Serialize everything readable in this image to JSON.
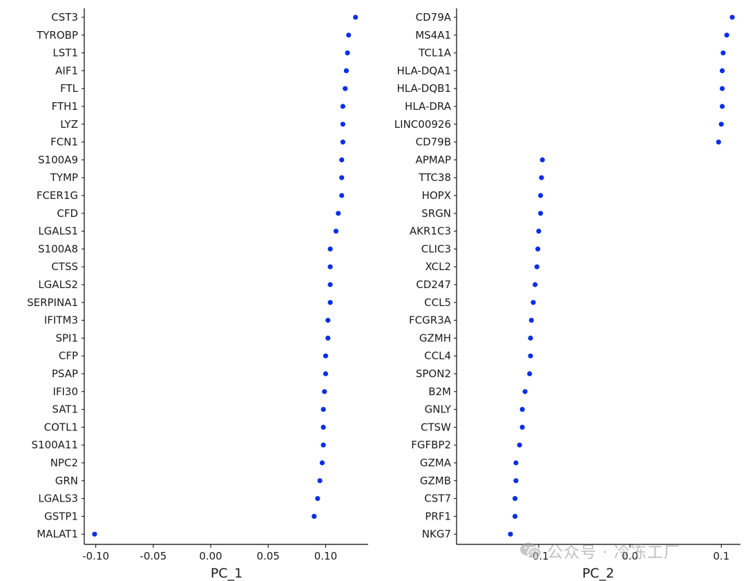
{
  "chart_data": [
    {
      "type": "scatter",
      "xlabel": "PC_1",
      "xlim": [
        -0.11,
        0.137
      ],
      "xticks": [
        -0.1,
        -0.05,
        0.0,
        0.05,
        0.1
      ],
      "xtick_labels": [
        "-0.10",
        "-0.05",
        "0.00",
        "0.05",
        "0.10"
      ],
      "point_color": "#0a2fe6",
      "categories": [
        "CST3",
        "TYROBP",
        "LST1",
        "AIF1",
        "FTL",
        "FTH1",
        "LYZ",
        "FCN1",
        "S100A9",
        "TYMP",
        "FCER1G",
        "CFD",
        "LGALS1",
        "S100A8",
        "CTSS",
        "LGALS2",
        "SERPINA1",
        "IFITM3",
        "SPI1",
        "CFP",
        "PSAP",
        "IFI30",
        "SAT1",
        "COTL1",
        "S100A11",
        "NPC2",
        "GRN",
        "LGALS3",
        "GSTP1",
        "MALAT1"
      ],
      "values": [
        0.126,
        0.12,
        0.119,
        0.118,
        0.117,
        0.115,
        0.115,
        0.115,
        0.114,
        0.114,
        0.114,
        0.111,
        0.109,
        0.104,
        0.104,
        0.104,
        0.104,
        0.102,
        0.102,
        0.1,
        0.1,
        0.099,
        0.098,
        0.098,
        0.098,
        0.097,
        0.095,
        0.093,
        0.09,
        -0.101
      ]
    },
    {
      "type": "scatter",
      "xlabel": "PC_2",
      "xlim": [
        -0.19,
        0.121
      ],
      "xticks": [
        -0.1,
        0.0,
        0.1
      ],
      "xtick_labels": [
        "-0.1",
        "0.0",
        "0.1"
      ],
      "point_color": "#0a2fe6",
      "categories": [
        "CD79A",
        "MS4A1",
        "TCL1A",
        "HLA-DQA1",
        "HLA-DQB1",
        "HLA-DRA",
        "LINC00926",
        "CD79B",
        "APMAP",
        "TTC38",
        "HOPX",
        "SRGN",
        "AKR1C3",
        "CLIC3",
        "XCL2",
        "CD247",
        "CCL5",
        "FCGR3A",
        "GZMH",
        "CCL4",
        "SPON2",
        "B2M",
        "GNLY",
        "CTSW",
        "FGFBP2",
        "GZMA",
        "GZMB",
        "CST7",
        "PRF1",
        "NKG7"
      ],
      "values": [
        0.112,
        0.106,
        0.102,
        0.101,
        0.101,
        0.101,
        0.1,
        0.097,
        -0.096,
        -0.097,
        -0.098,
        -0.098,
        -0.1,
        -0.101,
        -0.102,
        -0.104,
        -0.106,
        -0.108,
        -0.109,
        -0.109,
        -0.11,
        -0.115,
        -0.118,
        -0.118,
        -0.121,
        -0.125,
        -0.125,
        -0.126,
        -0.126,
        -0.131
      ]
    }
  ],
  "watermark": {
    "text": "公众号 · 冷冻工厂",
    "icon": "wechat-icon"
  }
}
